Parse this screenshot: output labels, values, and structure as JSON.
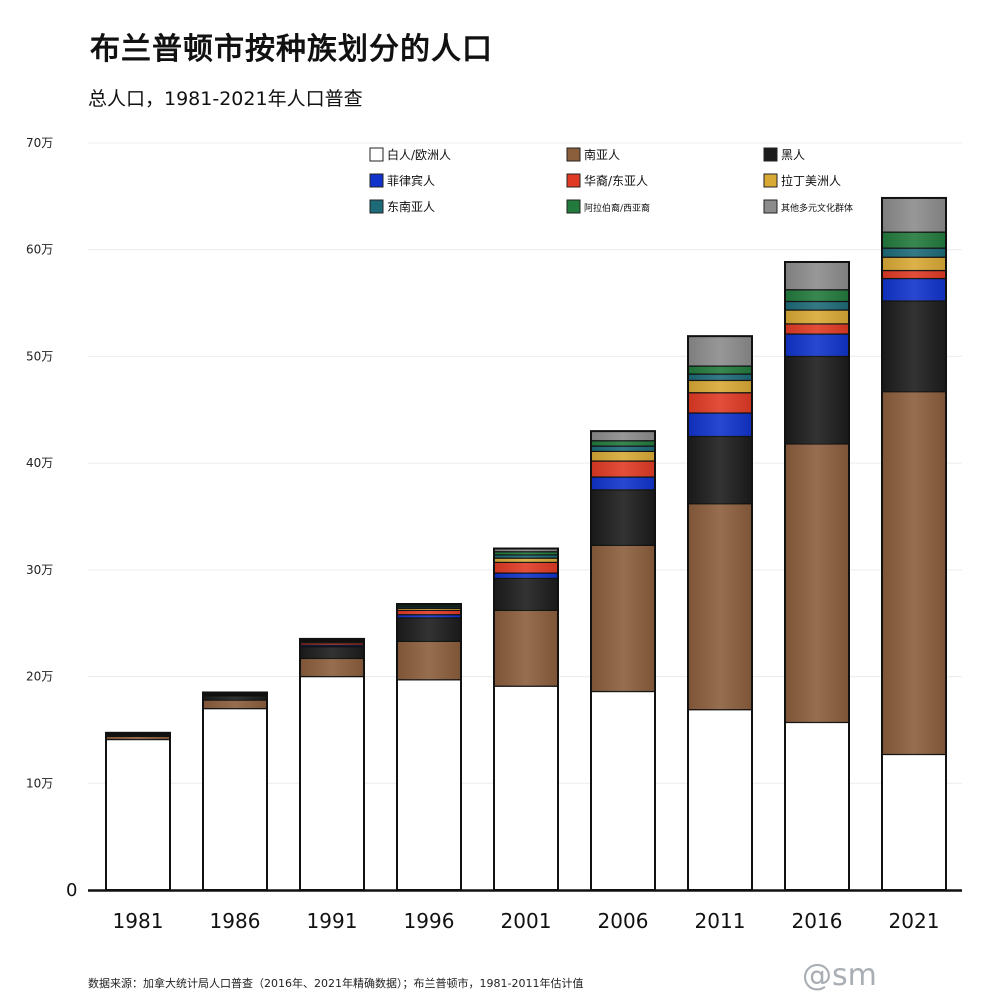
{
  "title": "布兰普顿市按种族划分的人口",
  "subtitle": "总人口，1981-2021年人口普查",
  "source": "数据来源：加拿大统计局人口普查（2016年、2021年精确数据）；布兰普顿市，1981-2011年估计值",
  "watermark": "@sm",
  "chart_data": {
    "type": "bar",
    "stacked": true,
    "categories": [
      "1981",
      "1986",
      "1991",
      "1996",
      "2001",
      "2006",
      "2011",
      "2016",
      "2021"
    ],
    "ylim": [
      0,
      700000
    ],
    "yticks": [
      {
        "value": 0,
        "label": "0"
      },
      {
        "value": 100000,
        "label": "10万"
      },
      {
        "value": 200000,
        "label": "20万"
      },
      {
        "value": 300000,
        "label": "30万"
      },
      {
        "value": 400000,
        "label": "40万"
      },
      {
        "value": 500000,
        "label": "50万"
      },
      {
        "value": 600000,
        "label": "60万"
      },
      {
        "value": 700000,
        "label": "70万"
      }
    ],
    "grid": true,
    "legend_position": "top",
    "series": [
      {
        "name": "白人/欧洲人",
        "color": "#ffffff",
        "values": [
          141000,
          170000,
          200000,
          197000,
          191000,
          186000,
          169000,
          157000,
          127000
        ]
      },
      {
        "name": "南亚人",
        "color": "#8b5e3c",
        "values": [
          3000,
          8000,
          17000,
          36000,
          71000,
          137000,
          193000,
          261000,
          340000
        ]
      },
      {
        "name": "黑人",
        "color": "#1c1c1c",
        "values": [
          1500,
          4000,
          11000,
          22000,
          30000,
          52000,
          63000,
          82000,
          85000
        ]
      },
      {
        "name": "菲律宾人",
        "color": "#1133cc",
        "values": [
          300,
          600,
          1500,
          3000,
          5000,
          12000,
          22000,
          21000,
          21000
        ]
      },
      {
        "name": "华裔/东亚人",
        "color": "#e03a25",
        "values": [
          600,
          800,
          2000,
          4000,
          10000,
          15000,
          19000,
          9500,
          7500
        ]
      },
      {
        "name": "拉丁美洲人",
        "color": "#d9a935",
        "values": [
          300,
          500,
          1200,
          2000,
          4000,
          9000,
          11500,
          13000,
          12500
        ]
      },
      {
        "name": "东南亚人",
        "color": "#1d6b78",
        "values": [
          200,
          400,
          1000,
          1500,
          3000,
          5000,
          6000,
          8000,
          8500
        ]
      },
      {
        "name": "阿拉伯裔/西亚裔",
        "color": "#237a3d",
        "values": [
          200,
          400,
          800,
          1500,
          3000,
          5000,
          7500,
          11000,
          15000
        ]
      },
      {
        "name": "其他多元文化群体",
        "color": "#8c8c8c",
        "values": [
          200,
          400,
          800,
          1000,
          3000,
          9000,
          28000,
          26000,
          32000
        ]
      }
    ]
  }
}
